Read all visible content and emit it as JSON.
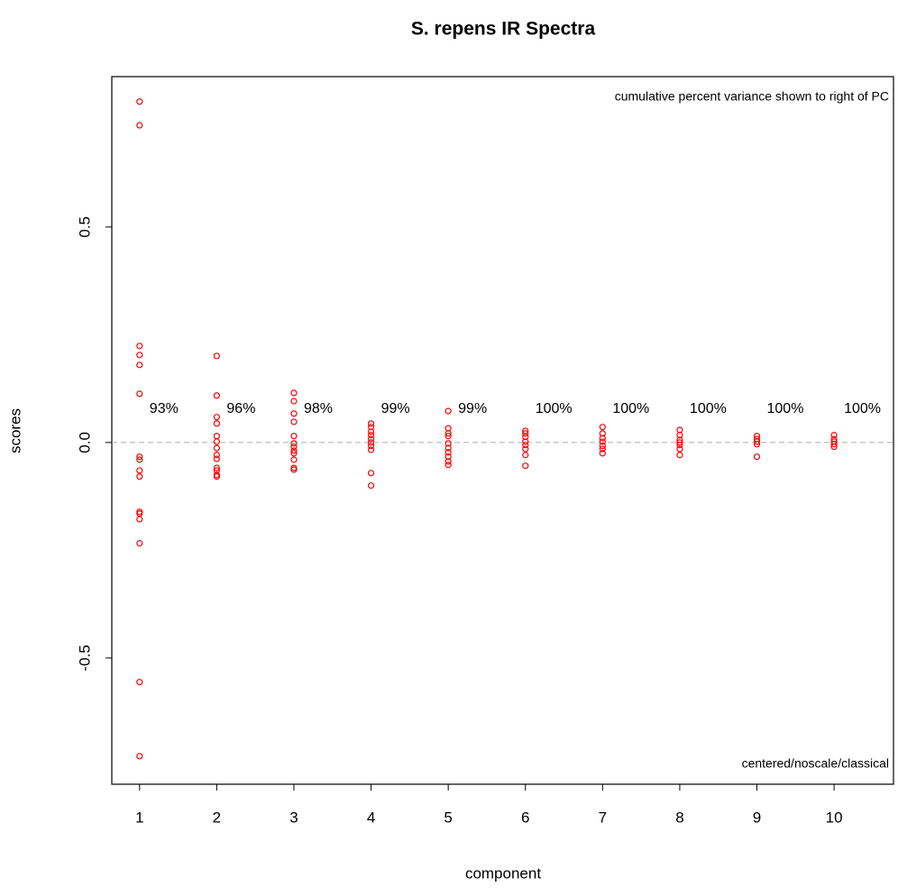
{
  "chart_data": {
    "type": "scatter",
    "title": "S. repens IR Spectra",
    "xlabel": "component",
    "ylabel": "scores",
    "annotations": [
      "cumulative percent variance shown to right of PC",
      "centered/noscale/classical"
    ],
    "variance_labels": [
      "93%",
      "96%",
      "98%",
      "99%",
      "99%",
      "100%",
      "100%",
      "100%",
      "100%",
      "100%"
    ],
    "color": "#ff0000",
    "reference_line": 0,
    "xlim": [
      0.64,
      10.77
    ],
    "xticks": [
      1,
      2,
      3,
      4,
      5,
      6,
      7,
      8,
      9,
      10
    ],
    "ylim": [
      -0.793,
      0.849
    ],
    "yticks": [
      -0.5,
      {
        "value": 0,
        "label": "0.0"
      },
      0.5
    ],
    "x": [
      1,
      1,
      1,
      1,
      1,
      1,
      1,
      1,
      1,
      1,
      1,
      1,
      1,
      1,
      1,
      1,
      2,
      2,
      2,
      2,
      2,
      2,
      2,
      2,
      2,
      2,
      2,
      2,
      2,
      3,
      3,
      3,
      3,
      3,
      3,
      3,
      3,
      3,
      3,
      3,
      3,
      4,
      4,
      4,
      4,
      4,
      4,
      4,
      4,
      4,
      4,
      5,
      5,
      5,
      5,
      5,
      5,
      5,
      5,
      5,
      5,
      6,
      6,
      6,
      6,
      6,
      6,
      6,
      6,
      7,
      7,
      7,
      7,
      7,
      7,
      7,
      8,
      8,
      8,
      8,
      8,
      8,
      8,
      9,
      9,
      9,
      9,
      9,
      10,
      10,
      10,
      10,
      10
    ],
    "values": [
      0.791,
      0.736,
      0.224,
      0.203,
      0.18,
      0.113,
      -0.033,
      -0.04,
      -0.065,
      -0.079,
      -0.161,
      -0.165,
      -0.178,
      -0.234,
      -0.556,
      -0.728,
      0.201,
      0.109,
      0.059,
      0.044,
      0.015,
      0.002,
      -0.013,
      -0.029,
      -0.038,
      -0.059,
      -0.065,
      -0.075,
      -0.079,
      0.115,
      0.096,
      0.067,
      0.048,
      0.015,
      -0.002,
      -0.01,
      -0.019,
      -0.025,
      -0.04,
      -0.059,
      -0.063,
      0.044,
      0.036,
      0.025,
      0.017,
      0.008,
      0,
      -0.008,
      -0.017,
      -0.071,
      -0.1,
      0.073,
      0.033,
      0.021,
      0.015,
      -0.002,
      -0.013,
      -0.023,
      -0.033,
      -0.044,
      -0.052,
      0.027,
      0.021,
      0.013,
      0.002,
      -0.006,
      -0.015,
      -0.029,
      -0.054,
      0.036,
      0.021,
      0.01,
      0.002,
      -0.008,
      -0.015,
      -0.025,
      0.029,
      0.017,
      0.006,
      0,
      -0.006,
      -0.015,
      -0.029,
      0.015,
      0.008,
      0.002,
      -0.004,
      -0.033,
      0.017,
      0.008,
      0.002,
      -0.004,
      -0.01
    ]
  }
}
